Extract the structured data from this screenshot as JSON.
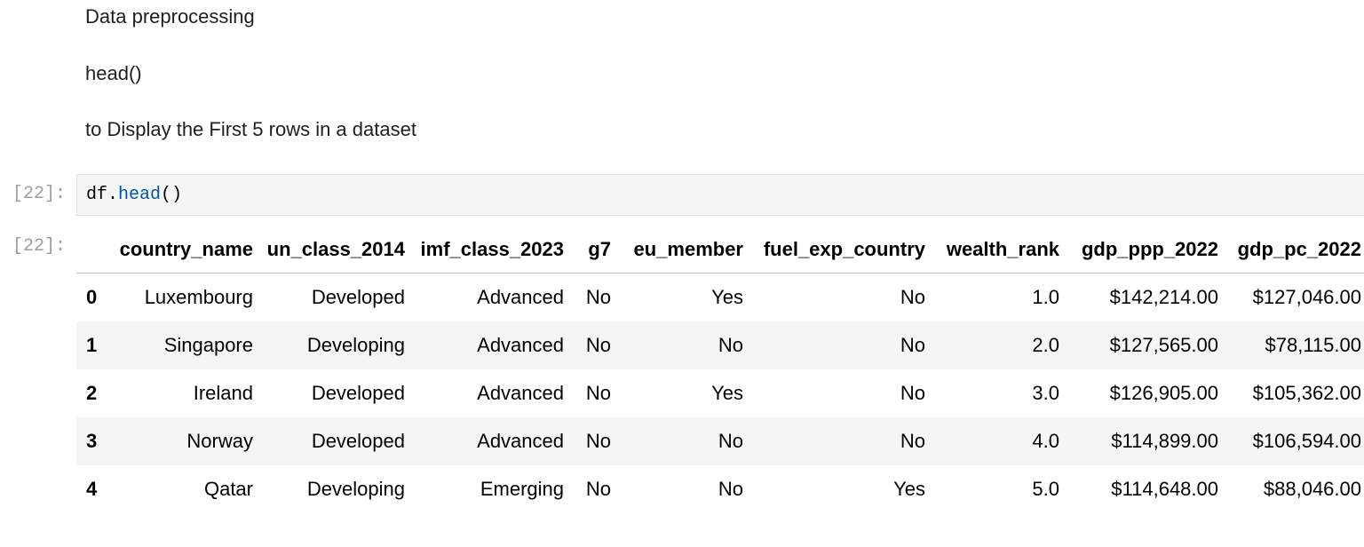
{
  "markdown": {
    "heading": "Data preprocessing",
    "function": "head()",
    "description": "to Display the First 5 rows in a dataset"
  },
  "code_cell": {
    "prompt": "[22]:",
    "code": [
      "df.",
      "head",
      "()"
    ]
  },
  "output": {
    "prompt": "[22]:",
    "table": {
      "columns": [
        "",
        "country_name",
        "un_class_2014",
        "imf_class_2023",
        "g7",
        "eu_member",
        "fuel_exp_country",
        "wealth_rank",
        "gdp_ppp_2022",
        "gdp_pc_2022"
      ],
      "rows": [
        [
          "0",
          "Luxembourg",
          "Developed",
          "Advanced",
          "No",
          "Yes",
          "No",
          "1.0",
          "$142,214.00",
          "$127,046.00"
        ],
        [
          "1",
          "Singapore",
          "Developing",
          "Advanced",
          "No",
          "No",
          "No",
          "2.0",
          "$127,565.00",
          "$78,115.00"
        ],
        [
          "2",
          "Ireland",
          "Developed",
          "Advanced",
          "No",
          "Yes",
          "No",
          "3.0",
          "$126,905.00",
          "$105,362.00"
        ],
        [
          "3",
          "Norway",
          "Developed",
          "Advanced",
          "No",
          "No",
          "No",
          "4.0",
          "$114,899.00",
          "$106,594.00"
        ],
        [
          "4",
          "Qatar",
          "Developing",
          "Emerging",
          "No",
          "No",
          "Yes",
          "5.0",
          "$114,648.00",
          "$88,046.00"
        ]
      ]
    }
  }
}
